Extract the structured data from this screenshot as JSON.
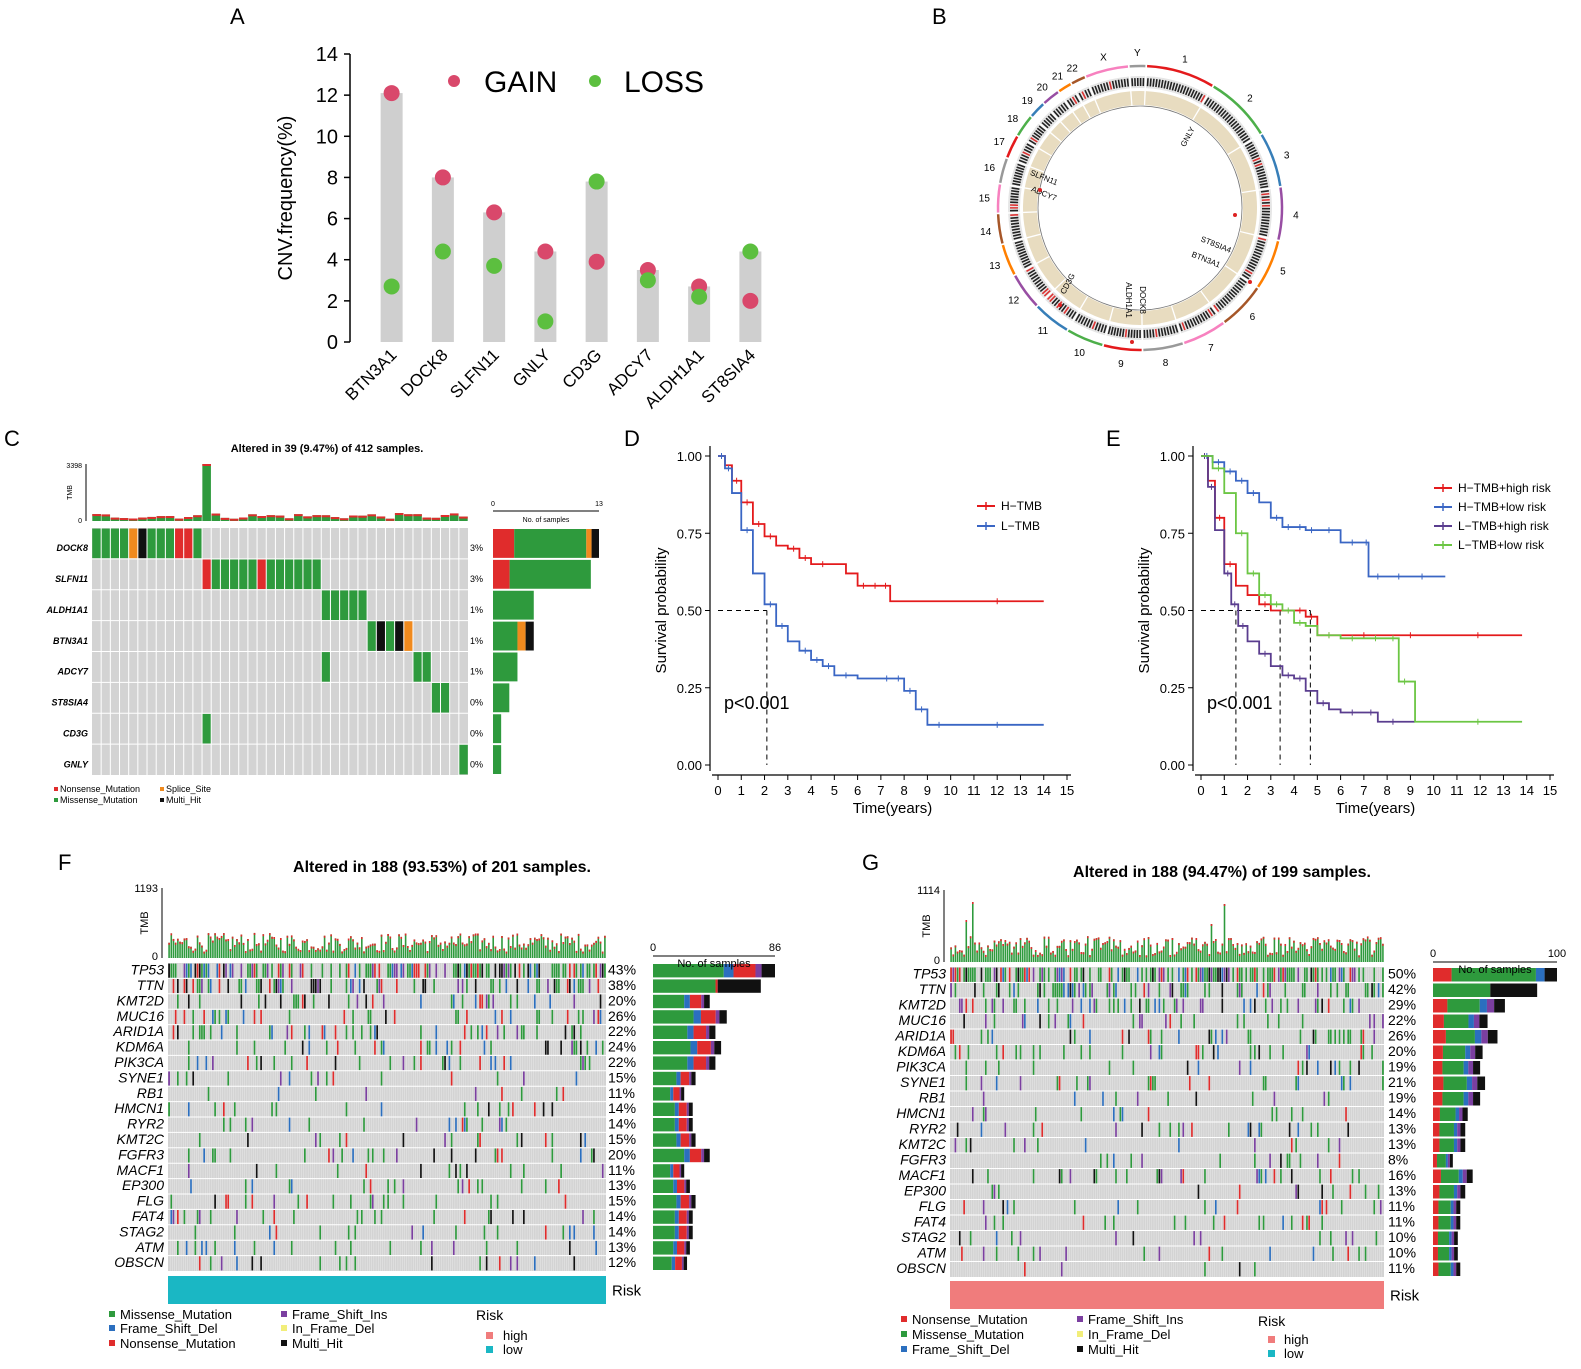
{
  "colors": {
    "gain": "#d9486b",
    "loss": "#5cbf3f",
    "barGray": "#cfcfcf",
    "gridGray": "#cfcfcf",
    "missense": "#2e9a3d",
    "nonsense": "#e02c2c",
    "splice": "#f08a1e",
    "multi": "#111111",
    "fsdel": "#2b6fbf",
    "fsins": "#7b3fa0",
    "inframe": "#f2ee7a",
    "red": "#e41a1c",
    "blue": "#3a66c4",
    "purple": "#5a3d8f",
    "green": "#6cc644",
    "riskHigh": "#f07c7c",
    "riskLow": "#1ab7c4"
  },
  "panel_labels": [
    "A",
    "B",
    "C",
    "D",
    "E",
    "F",
    "G"
  ],
  "chart_data": [
    {
      "panel": "A",
      "type": "scatter",
      "ylabel": "CNV.frequency(%)",
      "ylim": [
        0,
        14
      ],
      "yticks": [
        "0",
        "2",
        "4",
        "6",
        "8",
        "10",
        "12",
        "14"
      ],
      "categories": [
        "BTN3A1",
        "DOCK8",
        "SLFN11",
        "GNLY",
        "CD3G",
        "ADCY7",
        "ALDH1A1",
        "ST8SIA4"
      ],
      "series": [
        {
          "name": "GAIN",
          "values": [
            12.1,
            8.0,
            6.3,
            4.4,
            3.9,
            3.5,
            2.7,
            2.0
          ]
        },
        {
          "name": "LOSS",
          "values": [
            2.7,
            4.4,
            3.7,
            1.0,
            7.8,
            3.0,
            2.2,
            4.4
          ]
        }
      ],
      "legend": [
        "GAIN",
        "LOSS"
      ]
    },
    {
      "panel": "B",
      "type": "other",
      "chromosomes": [
        "1",
        "2",
        "3",
        "4",
        "5",
        "6",
        "7",
        "8",
        "9",
        "10",
        "11",
        "12",
        "13",
        "14",
        "15",
        "16",
        "17",
        "18",
        "19",
        "20",
        "21",
        "22",
        "X",
        "Y"
      ],
      "genes": [
        "GNLY",
        "SLFN11",
        "ADCY7",
        "ST8SIA4",
        "BTN3A1",
        "CD3G",
        "ALDH1A1",
        "DOCK8"
      ]
    },
    {
      "panel": "C",
      "type": "heatmap",
      "title": "Altered in 39 (9.47%) of 412 samples.",
      "tmb_label": "TMB",
      "tmb_max": "3398",
      "tmb_min": "0",
      "genes": [
        "DOCK8",
        "SLFN11",
        "ALDH1A1",
        "BTN3A1",
        "ADCY7",
        "ST8SIA4",
        "CD3G",
        "GNLY"
      ],
      "pcts": [
        "3%",
        "3%",
        "1%",
        "1%",
        "1%",
        "0%",
        "0%",
        "0%"
      ],
      "counts": [
        13,
        12,
        5,
        5,
        3,
        2,
        1,
        1
      ],
      "side_axis_label": "No. of samples",
      "side_max": "13",
      "side_min": "0",
      "legend": [
        "Nonsense_Mutation",
        "Splice_Site",
        "Missense_Mutation",
        "Multi_Hit"
      ]
    },
    {
      "panel": "D",
      "type": "line",
      "xlabel": "Time(years)",
      "ylabel": "Survival probability",
      "xlim": [
        0,
        15
      ],
      "ylim": [
        0,
        1
      ],
      "xticks": [
        "0",
        "1",
        "2",
        "3",
        "4",
        "5",
        "6",
        "7",
        "8",
        "9",
        "10",
        "11",
        "12",
        "13",
        "14",
        "15"
      ],
      "yticks": [
        "0.00",
        "0.25",
        "0.50",
        "0.75",
        "1.00"
      ],
      "pvalue": "p<0.001",
      "series": [
        {
          "name": "H−TMB",
          "x": [
            0,
            0.3,
            0.6,
            1,
            1.5,
            2,
            2.5,
            3,
            3.5,
            4,
            5,
            5.5,
            6,
            6.5,
            7,
            7.4,
            8,
            10,
            14
          ],
          "y": [
            1,
            0.97,
            0.92,
            0.85,
            0.78,
            0.74,
            0.71,
            0.7,
            0.67,
            0.65,
            0.65,
            0.62,
            0.58,
            0.58,
            0.58,
            0.53,
            0.53,
            0.53,
            0.53
          ]
        },
        {
          "name": "L−TMB",
          "x": [
            0,
            0.3,
            0.6,
            1,
            1.5,
            2,
            2.5,
            3,
            3.5,
            4,
            4.5,
            5,
            6,
            7,
            7.5,
            8,
            8.5,
            9,
            10,
            14
          ],
          "y": [
            1,
            0.96,
            0.88,
            0.76,
            0.62,
            0.52,
            0.45,
            0.4,
            0.37,
            0.34,
            0.32,
            0.29,
            0.28,
            0.28,
            0.28,
            0.24,
            0.18,
            0.13,
            0.13,
            0.13
          ]
        }
      ],
      "median_x": [
        2.1
      ]
    },
    {
      "panel": "E",
      "type": "line",
      "xlabel": "Time(years)",
      "ylabel": "Survival probability",
      "xlim": [
        0,
        15
      ],
      "ylim": [
        0,
        1
      ],
      "xticks": [
        "0",
        "1",
        "2",
        "3",
        "4",
        "5",
        "6",
        "7",
        "8",
        "9",
        "10",
        "11",
        "12",
        "13",
        "14",
        "15"
      ],
      "yticks": [
        "0.00",
        "0.25",
        "0.50",
        "0.75",
        "1.00"
      ],
      "pvalue": "p<0.001",
      "series": [
        {
          "name": "H−TMB+high risk",
          "x": [
            0,
            0.3,
            0.6,
            1,
            1.5,
            2,
            2.5,
            3,
            4,
            4.5,
            5,
            6,
            8,
            10,
            13.8
          ],
          "y": [
            1,
            0.92,
            0.8,
            0.65,
            0.58,
            0.55,
            0.52,
            0.5,
            0.5,
            0.48,
            0.42,
            0.42,
            0.42,
            0.42,
            0.42
          ]
        },
        {
          "name": "H−TMB+low risk",
          "x": [
            0,
            0.5,
            1,
            1.5,
            2,
            2.5,
            3,
            3.5,
            4,
            4.5,
            5,
            6,
            7,
            7.2,
            8,
            9,
            10,
            10.5
          ],
          "y": [
            1,
            0.98,
            0.95,
            0.92,
            0.88,
            0.85,
            0.8,
            0.77,
            0.77,
            0.76,
            0.76,
            0.72,
            0.72,
            0.61,
            0.61,
            0.61,
            0.61,
            0.61
          ]
        },
        {
          "name": "L−TMB+high risk",
          "x": [
            0,
            0.3,
            0.6,
            1,
            1.3,
            1.6,
            2,
            2.5,
            3,
            3.5,
            4,
            4.5,
            5,
            5.5,
            6,
            7,
            7.6,
            8,
            8.5,
            9.2
          ],
          "y": [
            1,
            0.9,
            0.76,
            0.62,
            0.52,
            0.45,
            0.4,
            0.36,
            0.32,
            0.29,
            0.28,
            0.24,
            0.2,
            0.18,
            0.17,
            0.17,
            0.14,
            0.14,
            0.14,
            0.14
          ]
        },
        {
          "name": "L−TMB+low risk",
          "x": [
            0,
            0.5,
            1,
            1.5,
            2,
            2.5,
            3,
            3.5,
            4,
            4.5,
            5,
            6,
            7,
            8,
            8.5,
            9,
            9.2,
            10,
            13.8
          ],
          "y": [
            1,
            0.96,
            0.88,
            0.75,
            0.62,
            0.55,
            0.52,
            0.5,
            0.46,
            0.45,
            0.42,
            0.41,
            0.41,
            0.41,
            0.27,
            0.27,
            0.14,
            0.14,
            0.14
          ]
        }
      ],
      "median_x": [
        1.5,
        3.4,
        4.7
      ]
    },
    {
      "panel": "F",
      "type": "heatmap",
      "title": "Altered in 188 (93.53%) of 201 samples.",
      "tmb_label": "TMB",
      "tmb_max": "1193",
      "tmb_min": "0",
      "genes": [
        "TP53",
        "TTN",
        "KMT2D",
        "MUC16",
        "ARID1A",
        "KDM6A",
        "PIK3CA",
        "SYNE1",
        "RB1",
        "HMCN1",
        "RYR2",
        "KMT2C",
        "FGFR3",
        "MACF1",
        "EP300",
        "FLG",
        "FAT4",
        "STAG2",
        "ATM",
        "OBSCN"
      ],
      "pcts": [
        "43%",
        "38%",
        "20%",
        "26%",
        "22%",
        "24%",
        "22%",
        "15%",
        "11%",
        "14%",
        "14%",
        "15%",
        "20%",
        "11%",
        "13%",
        "15%",
        "14%",
        "14%",
        "13%",
        "12%"
      ],
      "counts": [
        86,
        76,
        40,
        52,
        44,
        48,
        44,
        30,
        22,
        28,
        28,
        30,
        40,
        22,
        26,
        30,
        28,
        28,
        26,
        24
      ],
      "side_axis_label": "No. of samples",
      "side_max": "86",
      "side_min": "0",
      "risk_label": "Risk",
      "risk": "low",
      "legend": [
        "Missense_Mutation",
        "Frame_Shift_Ins",
        "Frame_Shift_Del",
        "In_Frame_Del",
        "Nonsense_Mutation",
        "Multi_Hit"
      ],
      "risk_legend_title": "Risk",
      "risk_legend": [
        "high",
        "low"
      ]
    },
    {
      "panel": "G",
      "type": "heatmap",
      "title": "Altered in 188 (94.47%) of 199 samples.",
      "tmb_label": "TMB",
      "tmb_max": "1114",
      "tmb_min": "0",
      "genes": [
        "TP53",
        "TTN",
        "KMT2D",
        "MUC16",
        "ARID1A",
        "KDM6A",
        "PIK3CA",
        "SYNE1",
        "RB1",
        "HMCN1",
        "RYR2",
        "KMT2C",
        "FGFR3",
        "MACF1",
        "EP300",
        "FLG",
        "FAT4",
        "STAG2",
        "ATM",
        "OBSCN"
      ],
      "pcts": [
        "50%",
        "42%",
        "29%",
        "22%",
        "26%",
        "20%",
        "19%",
        "21%",
        "19%",
        "14%",
        "13%",
        "13%",
        "8%",
        "16%",
        "13%",
        "11%",
        "11%",
        "10%",
        "10%",
        "11%"
      ],
      "counts": [
        100,
        84,
        58,
        44,
        52,
        40,
        38,
        42,
        38,
        28,
        26,
        26,
        16,
        32,
        26,
        22,
        22,
        20,
        20,
        22
      ],
      "side_axis_label": "No. of samples",
      "side_max": "100",
      "side_min": "0",
      "risk_label": "Risk",
      "risk": "high",
      "legend": [
        "Nonsense_Mutation",
        "Frame_Shift_Ins",
        "Missense_Mutation",
        "In_Frame_Del",
        "Frame_Shift_Del",
        "Multi_Hit"
      ],
      "risk_legend_title": "Risk",
      "risk_legend": [
        "high",
        "low"
      ]
    }
  ]
}
